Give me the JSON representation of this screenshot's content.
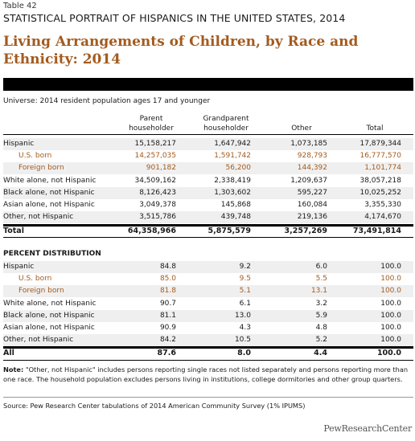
{
  "table_number": "Table 42",
  "supertitle": "STATISTICAL PORTRAIT OF HISPANICS IN THE UNITED STATES, 2014",
  "title": "Living Arrangements of Children, by Race and Ethnicity: 2014",
  "universe": "Universe: 2014 resident population ages 17 and younger",
  "columns": {
    "parent": [
      "Parent",
      "householder"
    ],
    "grandparent": [
      "Grandparent",
      "householder"
    ],
    "other": "Other",
    "total": "Total"
  },
  "counts": [
    {
      "label": "Hispanic",
      "values": [
        "15,158,217",
        "1,647,942",
        "1,073,185",
        "17,879,344"
      ]
    },
    {
      "label": "U.S. born",
      "values": [
        "14,257,035",
        "1,591,742",
        "928,793",
        "16,777,570"
      ]
    },
    {
      "label": "Foreign born",
      "values": [
        "901,182",
        "56,200",
        "144,392",
        "1,101,774"
      ]
    },
    {
      "label": "White alone, not Hispanic",
      "values": [
        "34,509,162",
        "2,338,419",
        "1,209,637",
        "38,057,218"
      ]
    },
    {
      "label": "Black alone, not Hispanic",
      "values": [
        "8,126,423",
        "1,303,602",
        "595,227",
        "10,025,252"
      ]
    },
    {
      "label": "Asian alone, not Hispanic",
      "values": [
        "3,049,378",
        "145,868",
        "160,084",
        "3,355,330"
      ]
    },
    {
      "label": "Other, not Hispanic",
      "values": [
        "3,515,786",
        "439,748",
        "219,136",
        "4,174,670"
      ]
    }
  ],
  "counts_total": {
    "label": "Total",
    "values": [
      "64,358,966",
      "5,875,579",
      "3,257,269",
      "73,491,814"
    ]
  },
  "percent_heading": "PERCENT DISTRIBUTION",
  "percents": [
    {
      "label": "Hispanic",
      "values": [
        "84.8",
        "9.2",
        "6.0",
        "100.0"
      ]
    },
    {
      "label": "U.S. born",
      "values": [
        "85.0",
        "9.5",
        "5.5",
        "100.0"
      ]
    },
    {
      "label": "Foreign born",
      "values": [
        "81.8",
        "5.1",
        "13.1",
        "100.0"
      ]
    },
    {
      "label": "White alone, not Hispanic",
      "values": [
        "90.7",
        "6.1",
        "3.2",
        "100.0"
      ]
    },
    {
      "label": "Black alone, not Hispanic",
      "values": [
        "81.1",
        "13.0",
        "5.9",
        "100.0"
      ]
    },
    {
      "label": "Asian alone, not Hispanic",
      "values": [
        "90.9",
        "4.3",
        "4.8",
        "100.0"
      ]
    },
    {
      "label": "Other, not Hispanic",
      "values": [
        "84.2",
        "10.5",
        "5.2",
        "100.0"
      ]
    }
  ],
  "percents_total": {
    "label": "All",
    "values": [
      "87.6",
      "8.0",
      "4.4",
      "100.0"
    ]
  },
  "note_label": "Note:",
  "note_text": " \"Other, not Hispanic\" includes persons reporting single races not listed separately and persons reporting more than one race. The household population excludes persons living in institutions, college dormitories and other group quarters.",
  "source": "Source: Pew Research Center tabulations of 2014 American Community Survey (1% IPUMS)",
  "logo": "PewResearchCenter",
  "colors": {
    "accent": "#a35b1f",
    "shade": "#efefef"
  }
}
